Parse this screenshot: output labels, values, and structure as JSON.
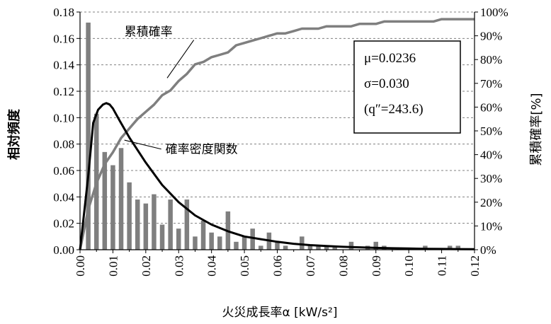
{
  "chart_data": {
    "type": "bar",
    "xlabel": "火災成長率α [kW/s²]",
    "ylabel": "相対頻度",
    "ylabel_right": "累積確率[%]",
    "xlim": [
      0.0,
      0.12
    ],
    "ylim": [
      0.0,
      0.18
    ],
    "ylim_right": [
      0,
      100
    ],
    "grid": "horizontal-dashed",
    "x_ticks": [
      "0.00",
      "0.01",
      "0.02",
      "0.03",
      "0.04",
      "0.05",
      "0.06",
      "0.07",
      "0.08",
      "0.09",
      "0.10",
      "0.11",
      "0.12"
    ],
    "y_ticks": [
      "0.00",
      "0.02",
      "0.04",
      "0.06",
      "0.08",
      "0.10",
      "0.12",
      "0.14",
      "0.16",
      "0.18"
    ],
    "y_right_ticks": [
      "0%",
      "10%",
      "20%",
      "30%",
      "40%",
      "50%",
      "60%",
      "70%",
      "80%",
      "90%",
      "100%"
    ],
    "bar_width": 0.0014,
    "series": [
      {
        "name": "相対頻度",
        "type": "bar",
        "color": "#7f7f7f",
        "x": [
          0.0025,
          0.005,
          0.0075,
          0.01,
          0.0125,
          0.015,
          0.0175,
          0.02,
          0.0225,
          0.025,
          0.0275,
          0.03,
          0.0325,
          0.035,
          0.0375,
          0.04,
          0.0425,
          0.045,
          0.0475,
          0.05,
          0.0525,
          0.055,
          0.0575,
          0.06,
          0.0625,
          0.065,
          0.0675,
          0.07,
          0.0725,
          0.075,
          0.0775,
          0.08,
          0.0825,
          0.085,
          0.0875,
          0.09,
          0.0925,
          0.095,
          0.0975,
          0.1,
          0.1025,
          0.105,
          0.1075,
          0.11,
          0.1125,
          0.115,
          0.1175,
          0.12
        ],
        "values": [
          0.172,
          0.103,
          0.074,
          0.064,
          0.077,
          0.051,
          0.038,
          0.035,
          0.042,
          0.019,
          0.038,
          0.016,
          0.038,
          0.01,
          0.022,
          0.013,
          0.01,
          0.029,
          0.006,
          0.01,
          0.016,
          0.003,
          0.013,
          0.006,
          0.003,
          0.0,
          0.01,
          0.003,
          0.003,
          0.003,
          0.003,
          0.0,
          0.006,
          0.0,
          0.003,
          0.006,
          0.003,
          0.0,
          0.0,
          0.0,
          0.0,
          0.003,
          0.0,
          0.0,
          0.003,
          0.003,
          0.0,
          0.0
        ]
      },
      {
        "name": "累積確率",
        "type": "line",
        "axis": "right",
        "color": "#7f7f7f",
        "x": [
          0.0,
          0.0025,
          0.005,
          0.0075,
          0.01,
          0.0125,
          0.015,
          0.0175,
          0.02,
          0.0225,
          0.025,
          0.0275,
          0.03,
          0.0325,
          0.035,
          0.0375,
          0.04,
          0.0425,
          0.045,
          0.0475,
          0.05,
          0.0525,
          0.055,
          0.0575,
          0.06,
          0.0625,
          0.065,
          0.0675,
          0.07,
          0.0725,
          0.075,
          0.0775,
          0.08,
          0.0825,
          0.085,
          0.0875,
          0.09,
          0.0925,
          0.095,
          0.0975,
          0.1,
          0.1025,
          0.105,
          0.1075,
          0.11,
          0.1125,
          0.115,
          0.1175,
          0.12
        ],
        "values": [
          0,
          17,
          28,
          36,
          41,
          47,
          51,
          55,
          58,
          61,
          65,
          67,
          71,
          74,
          78,
          79,
          81,
          82,
          83,
          86,
          87,
          88,
          89,
          90,
          91,
          91,
          92,
          93,
          93,
          93,
          94,
          94,
          94,
          94,
          95,
          95,
          95,
          96,
          96,
          96,
          96,
          96,
          96,
          96,
          97,
          97,
          97,
          97,
          97
        ]
      },
      {
        "name": "確率密度関数",
        "type": "line",
        "color": "#000000",
        "x": [
          0.0,
          0.0025,
          0.004,
          0.0055,
          0.007,
          0.008,
          0.009,
          0.01,
          0.012,
          0.015,
          0.02,
          0.025,
          0.03,
          0.035,
          0.04,
          0.045,
          0.05,
          0.055,
          0.06,
          0.065,
          0.07,
          0.075,
          0.08,
          0.085,
          0.09,
          0.095,
          0.1,
          0.105,
          0.11,
          0.115,
          0.12
        ],
        "values": [
          0.0,
          0.056,
          0.096,
          0.106,
          0.11,
          0.111,
          0.11,
          0.107,
          0.098,
          0.085,
          0.066,
          0.049,
          0.036,
          0.026,
          0.019,
          0.014,
          0.01,
          0.008,
          0.006,
          0.0045,
          0.0035,
          0.0028,
          0.0022,
          0.0018,
          0.0014,
          0.0011,
          0.0009,
          0.0007,
          0.0006,
          0.0005,
          0.0004
        ]
      }
    ],
    "annotations": [
      {
        "label": "累積確率",
        "text_x": 0.0135,
        "text_y": 0.162,
        "arrow_to_x": 0.0265,
        "arrow_to_y": 0.13
      },
      {
        "label": "確率密度関数",
        "text_x": 0.026,
        "text_y": 0.073,
        "arrow_to_x": 0.0135,
        "arrow_to_y": 0.083
      }
    ],
    "stats_box": {
      "lines": [
        "μ=0.0236",
        "σ=0.030",
        "(q″=243.6)"
      ],
      "position": "top-right"
    }
  }
}
